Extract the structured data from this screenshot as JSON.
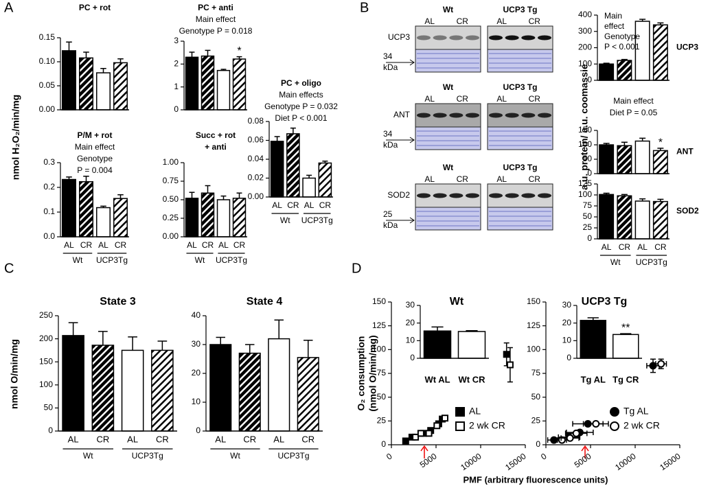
{
  "panel_labels": [
    "A",
    "B",
    "C",
    "D"
  ],
  "blots": {
    "groups": [
      "Wt",
      "UCP3 Tg"
    ],
    "lanes": [
      "AL",
      "CR",
      "AL",
      "CR"
    ],
    "rows": [
      {
        "protein": "UCP3",
        "marker": [
          "34",
          "kDa"
        ]
      },
      {
        "protein": "ANT",
        "marker": [
          "34",
          "kDa"
        ]
      },
      {
        "protein": "SOD2",
        "marker": [
          "25",
          "kDa"
        ]
      }
    ]
  },
  "chart_data": [
    {
      "type": "bar",
      "title": [
        "PC + rot"
      ],
      "notes": [],
      "ylabel": "nmol H₂O₂/min/mg",
      "values": [
        0.123,
        0.108,
        0.077,
        0.098
      ],
      "errors": [
        0.018,
        0.012,
        0.009,
        0.008
      ],
      "fills": [
        "#000000",
        "hatch-black",
        "#ffffff",
        "hatch-white"
      ],
      "ylim": [
        0,
        0.15
      ],
      "yticks": [
        {
          "value": 0,
          "label": "0.00"
        },
        0.05,
        {
          "value": 0.1,
          "label": "0.10"
        },
        0.15
      ]
    },
    {
      "type": "bar",
      "title": [
        "PC + anti"
      ],
      "notes": [
        "Main effect",
        "Genotype P = 0.018"
      ],
      "values": [
        2.3,
        2.35,
        1.72,
        2.22
      ],
      "errors": [
        0.22,
        0.25,
        0.05,
        0.1
      ],
      "marks": [
        null,
        null,
        null,
        "*"
      ],
      "fills": [
        "#000000",
        "hatch-black",
        "#ffffff",
        "hatch-white"
      ],
      "ylim": [
        0,
        3
      ],
      "yticks": [
        0,
        1,
        2,
        3
      ]
    },
    {
      "type": "bar",
      "title": [
        "P/M + rot"
      ],
      "notes": [
        "Main effect",
        "Genotype",
        "P = 0.004"
      ],
      "categories": [
        "AL",
        "CR",
        "AL",
        "CR"
      ],
      "groups": [
        "Wt",
        "UCP3Tg"
      ],
      "values": [
        0.232,
        0.223,
        0.118,
        0.155
      ],
      "errors": [
        0.01,
        0.022,
        0.006,
        0.015
      ],
      "fills": [
        "#000000",
        "hatch-black",
        "#ffffff",
        "hatch-white"
      ],
      "ylim": [
        0,
        0.3
      ],
      "yticks": [
        {
          "value": 0,
          "label": "0.0"
        },
        0.1,
        0.2,
        0.3
      ]
    },
    {
      "type": "bar",
      "title": [
        "Succ + rot",
        "+ anti"
      ],
      "notes": [],
      "categories": [
        "AL",
        "CR",
        "AL",
        "CR"
      ],
      "groups": [
        "Wt",
        "UCP3Tg"
      ],
      "values": [
        0.52,
        0.59,
        0.5,
        0.52
      ],
      "errors": [
        0.08,
        0.1,
        0.05,
        0.07
      ],
      "fills": [
        "#000000",
        "hatch-black",
        "#ffffff",
        "hatch-white"
      ],
      "ylim": [
        0,
        1
      ],
      "yticks": [
        {
          "value": 0,
          "label": "0.00"
        },
        0.25,
        {
          "value": 0.5,
          "label": "0.50"
        },
        0.75,
        {
          "value": 1,
          "label": "1.00"
        }
      ]
    },
    {
      "type": "bar",
      "title": [
        "PC + oligo"
      ],
      "notes": [
        "Main effects",
        "Genotype P = 0.032",
        "Diet P < 0.001"
      ],
      "categories": [
        "AL",
        "CR",
        "AL",
        "CR"
      ],
      "groups": [
        "Wt",
        "UCP3Tg"
      ],
      "values": [
        0.059,
        0.067,
        0.02,
        0.036
      ],
      "errors": [
        0.005,
        0.006,
        0.003,
        0.002
      ],
      "fills": [
        "#000000",
        "hatch-black",
        "#ffffff",
        "hatch-white"
      ],
      "ylim": [
        0,
        0.08
      ],
      "yticks": [
        {
          "value": 0,
          "label": "0.00"
        },
        0.02,
        0.04,
        0.06,
        0.08
      ]
    },
    {
      "type": "bar",
      "title": [],
      "notes": [
        "Main",
        "effect",
        "Genotype",
        "P < 0.001"
      ],
      "label": "UCP3",
      "ylabel": "a.u. protein/ a.u. coomassie",
      "values": [
        100,
        122,
        362,
        340
      ],
      "errors": [
        5,
        6,
        12,
        12
      ],
      "fills": [
        "#000000",
        "hatch-black",
        "#ffffff",
        "hatch-white"
      ],
      "ylim": [
        0,
        400
      ],
      "yticks": [
        0,
        100,
        200,
        300,
        400
      ]
    },
    {
      "type": "bar",
      "title": [],
      "notes": [
        "Main effect",
        "Diet P = 0.05"
      ],
      "label": "ANT",
      "values": [
        100,
        97,
        113,
        80
      ],
      "errors": [
        5,
        12,
        10,
        8
      ],
      "marks": [
        null,
        null,
        null,
        "*"
      ],
      "fills": [
        "#000000",
        "hatch-black",
        "#ffffff",
        "hatch-white"
      ],
      "ylim": [
        0,
        150
      ],
      "yticks": [
        0,
        50,
        100,
        150
      ]
    },
    {
      "type": "bar",
      "title": [],
      "notes": [],
      "label": "SOD2",
      "categories": [
        "AL",
        "CR",
        "AL",
        "CR"
      ],
      "groups": [
        "Wt",
        "UCP3Tg"
      ],
      "values": [
        101,
        98,
        86,
        85
      ],
      "errors": [
        3,
        3,
        5,
        5
      ],
      "fills": [
        "#000000",
        "hatch-black",
        "#ffffff",
        "hatch-white"
      ],
      "ylim": [
        0,
        125
      ],
      "yticks": [
        0,
        25,
        50,
        75,
        100,
        125
      ]
    },
    {
      "type": "bar",
      "title": [
        "State 3"
      ],
      "notes": [],
      "ylabel": "nmol O/min/mg",
      "categories": [
        "AL",
        "CR",
        "AL",
        "CR"
      ],
      "groups": [
        "Wt",
        "UCP3Tg"
      ],
      "values": [
        207,
        186,
        175,
        175
      ],
      "errors": [
        28,
        30,
        29,
        20
      ],
      "fills": [
        "#000000",
        "hatch-black",
        "#ffffff",
        "hatch-white"
      ],
      "ylim": [
        0,
        250
      ],
      "yticks": [
        0,
        50,
        100,
        150,
        200,
        250
      ]
    },
    {
      "type": "bar",
      "title": [
        "State 4"
      ],
      "notes": [],
      "categories": [
        "AL",
        "CR",
        "AL",
        "CR"
      ],
      "groups": [
        "Wt",
        "UCP3Tg"
      ],
      "values": [
        30,
        27,
        32,
        25.5
      ],
      "errors": [
        2.5,
        3,
        6.5,
        6
      ],
      "fills": [
        "#000000",
        "hatch-black",
        "#ffffff",
        "hatch-white"
      ],
      "ylim": [
        0,
        40
      ],
      "yticks": [
        0,
        10,
        20,
        30,
        40
      ]
    },
    {
      "type": "scatter",
      "ylabel": [
        "O₂ consumption",
        "(nmol O/min/mg)"
      ],
      "xlabel": "PMF (arbitrary fluorescence units)",
      "legend": "lower right",
      "xlim": [
        0,
        15000
      ],
      "xticks": [
        0,
        5000,
        10000,
        15000
      ],
      "ylim": [
        0,
        150
      ],
      "yticks": [
        0,
        25,
        50,
        75,
        100,
        125,
        150
      ],
      "series": [
        {
          "name": "AL",
          "marker": "square",
          "color": "#000000",
          "filled": true,
          "x": [
            1600,
            2300,
            3600,
            4400,
            5300,
            5700,
            12900
          ],
          "values": [
            4,
            8,
            12,
            15,
            22,
            27,
            95
          ],
          "errors": [
            null,
            null,
            null,
            null,
            null,
            null,
            12
          ]
        },
        {
          "name": "2 wk CR",
          "marker": "square",
          "color": "#000000",
          "filled": false,
          "x": [
            2700,
            3300,
            4200,
            5100,
            6000,
            13300
          ],
          "values": [
            8,
            12,
            12,
            20,
            28,
            84
          ],
          "errors": [
            null,
            null,
            null,
            null,
            null,
            18
          ]
        }
      ]
    },
    {
      "type": "bar",
      "title": [
        "Wt"
      ],
      "notes": [],
      "categories": [
        "Wt AL",
        "Wt CR"
      ],
      "category_color": "#ff0000",
      "values": [
        15.5,
        15.2
      ],
      "errors": [
        2.3,
        0.5
      ],
      "fills": [
        "#000000",
        "#ffffff"
      ],
      "ylim": [
        0,
        30
      ],
      "yticks": [
        0,
        10,
        20,
        30
      ]
    },
    {
      "type": "scatter",
      "legend": "lower right",
      "xlim": [
        0,
        15000
      ],
      "xticks": [
        0,
        5000,
        10000,
        15000
      ],
      "ylim": [
        0,
        150
      ],
      "yticks": [
        0,
        25,
        50,
        75,
        100,
        125,
        150
      ],
      "series": [
        {
          "name": "Tg AL",
          "marker": "circle",
          "color": "#000000",
          "filled": true,
          "x": [
            900,
            2600,
            3800,
            4700,
            12000
          ],
          "values": [
            5,
            8,
            13,
            22,
            83
          ],
          "errors": [
            null,
            null,
            null,
            null,
            7
          ],
          "xerrors": [
            700,
            1200,
            1500,
            1700,
            700
          ]
        },
        {
          "name": "2 wk CR",
          "marker": "circle",
          "color": "#000000",
          "filled": false,
          "x": [
            1800,
            2700,
            3400,
            5600,
            12900
          ],
          "values": [
            5,
            7,
            12,
            22,
            85
          ],
          "errors": [
            null,
            null,
            null,
            null,
            5
          ],
          "xerrors": [
            500,
            1000,
            1200,
            1400,
            600
          ]
        }
      ]
    },
    {
      "type": "bar",
      "title": [
        "UCP3 Tg"
      ],
      "notes": [],
      "categories": [
        "Tg AL",
        "Tg CR"
      ],
      "category_color": "#ff0000",
      "values": [
        21.5,
        13.5
      ],
      "errors": [
        1.5,
        0.5
      ],
      "marks": [
        null,
        "**"
      ],
      "fills": [
        "#000000",
        "#ffffff"
      ],
      "ylim": [
        0,
        30
      ],
      "yticks": [
        0,
        10,
        20,
        30
      ]
    }
  ]
}
